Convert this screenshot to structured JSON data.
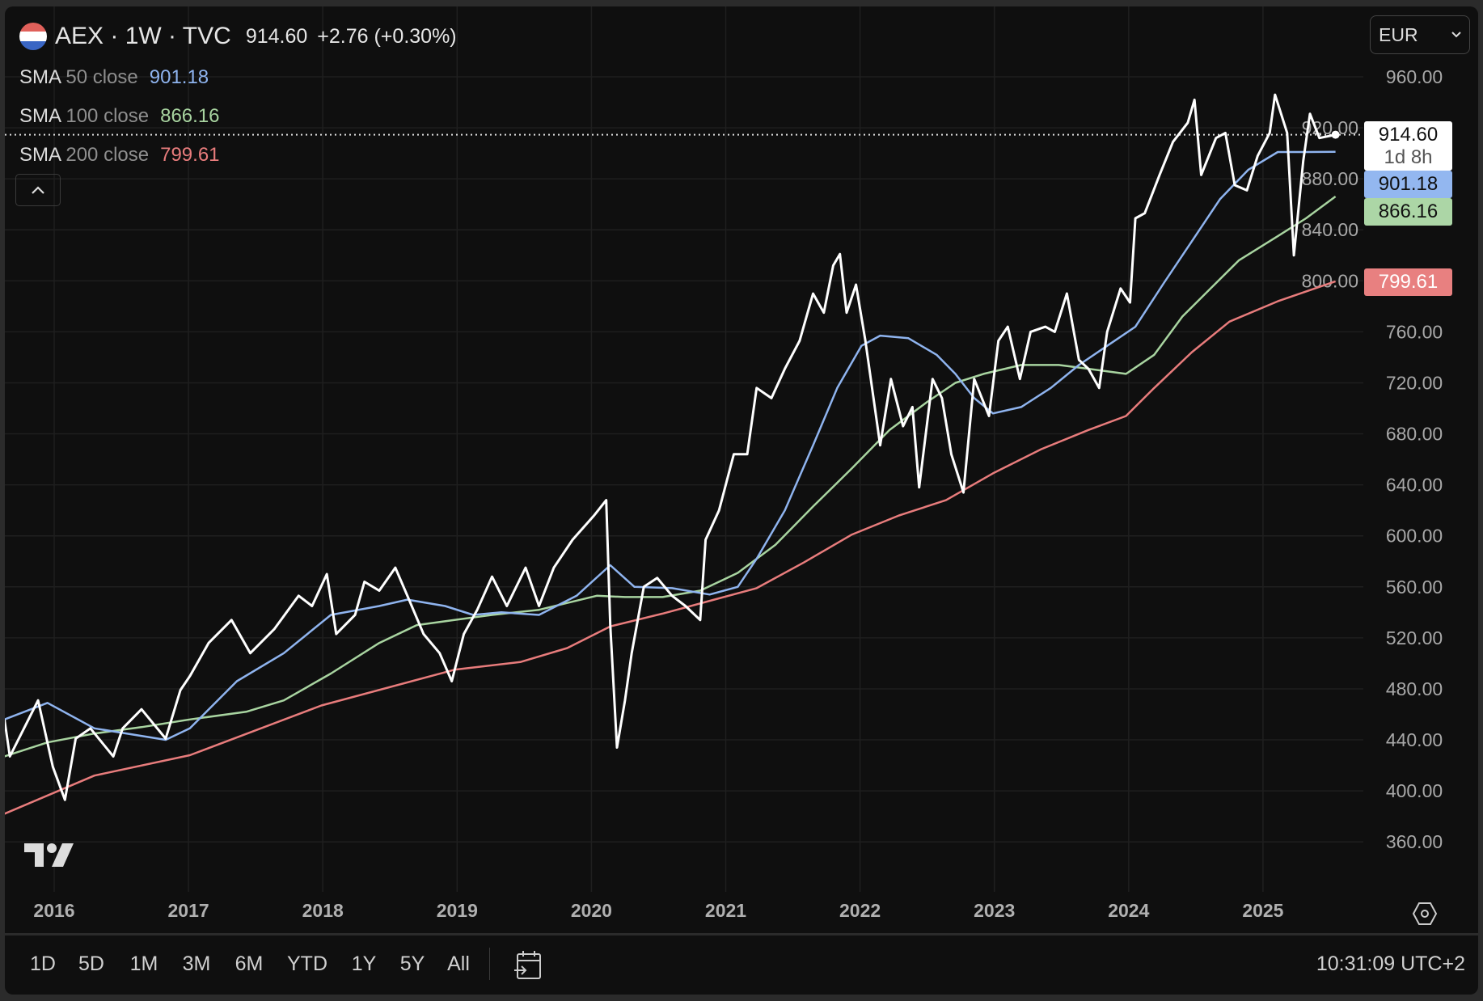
{
  "header": {
    "symbol": "AEX · 1W · TVC",
    "price": "914.60",
    "change": "+2.76 (+0.30%)",
    "flag_colors": [
      "#e0605a",
      "#ffffff",
      "#3a66c4"
    ]
  },
  "indicators": [
    {
      "name": "SMA",
      "params": "50 close",
      "value": "901.18",
      "color": "#8fb4ef"
    },
    {
      "name": "SMA",
      "params": "100 close",
      "value": "866.16",
      "color": "#a8d4a0"
    },
    {
      "name": "SMA",
      "params": "200 close",
      "value": "799.61",
      "color": "#e87c7c"
    }
  ],
  "currency": "EUR",
  "price_tags": {
    "last": "914.60",
    "countdown": "1d 8h",
    "sma50": "901.18",
    "sma100": "866.16",
    "sma200": "799.61"
  },
  "toolbar": {
    "ranges": [
      "1D",
      "5D",
      "1M",
      "3M",
      "6M",
      "YTD",
      "1Y",
      "5Y",
      "All"
    ],
    "clock": "10:31:09 UTC+2"
  },
  "chart_data": {
    "type": "line",
    "title": "AEX · 1W · TVC",
    "xlim": [
      2015.6,
      2025.9
    ],
    "ylim": [
      330,
      990
    ],
    "x_ticks": [
      "2016",
      "2017",
      "2018",
      "2019",
      "2020",
      "2021",
      "2022",
      "2023",
      "2024",
      "2025"
    ],
    "y_ticks": [
      "960.00",
      "920.00",
      "880.00",
      "840.00",
      "800.00",
      "760.00",
      "720.00",
      "680.00",
      "640.00",
      "600.00",
      "560.00",
      "520.00",
      "480.00",
      "440.00",
      "400.00",
      "360.00"
    ],
    "grid": true,
    "last_value": 914.6,
    "series": [
      {
        "name": "AEX close",
        "color": "#ffffff",
        "points": [
          [
            2015.63,
            456
          ],
          [
            2015.67,
            427
          ],
          [
            2015.88,
            471
          ],
          [
            2015.99,
            419
          ],
          [
            2016.08,
            393
          ],
          [
            2016.16,
            441
          ],
          [
            2016.27,
            449
          ],
          [
            2016.44,
            427
          ],
          [
            2016.51,
            449
          ],
          [
            2016.65,
            464
          ],
          [
            2016.83,
            441
          ],
          [
            2016.94,
            479
          ],
          [
            2017.01,
            490
          ],
          [
            2017.15,
            516
          ],
          [
            2017.32,
            534
          ],
          [
            2017.46,
            508
          ],
          [
            2017.64,
            527
          ],
          [
            2017.82,
            553
          ],
          [
            2017.92,
            545
          ],
          [
            2018.03,
            570
          ],
          [
            2018.1,
            523
          ],
          [
            2018.24,
            538
          ],
          [
            2018.31,
            564
          ],
          [
            2018.42,
            557
          ],
          [
            2018.54,
            575
          ],
          [
            2018.63,
            553
          ],
          [
            2018.75,
            523
          ],
          [
            2018.87,
            508
          ],
          [
            2018.96,
            486
          ],
          [
            2019.05,
            523
          ],
          [
            2019.15,
            542
          ],
          [
            2019.26,
            568
          ],
          [
            2019.37,
            545
          ],
          [
            2019.51,
            575
          ],
          [
            2019.61,
            545
          ],
          [
            2019.72,
            575
          ],
          [
            2019.86,
            597
          ],
          [
            2020.02,
            616
          ],
          [
            2020.11,
            628
          ],
          [
            2020.14,
            530
          ],
          [
            2020.19,
            434
          ],
          [
            2020.25,
            471
          ],
          [
            2020.3,
            508
          ],
          [
            2020.39,
            560
          ],
          [
            2020.49,
            567
          ],
          [
            2020.6,
            553
          ],
          [
            2020.7,
            545
          ],
          [
            2020.81,
            534
          ],
          [
            2020.85,
            597
          ],
          [
            2020.95,
            620
          ],
          [
            2021.06,
            664
          ],
          [
            2021.16,
            664
          ],
          [
            2021.23,
            716
          ],
          [
            2021.34,
            708
          ],
          [
            2021.44,
            731
          ],
          [
            2021.55,
            753
          ],
          [
            2021.65,
            790
          ],
          [
            2021.73,
            775
          ],
          [
            2021.8,
            812
          ],
          [
            2021.85,
            821
          ],
          [
            2021.9,
            775
          ],
          [
            2021.97,
            797
          ],
          [
            2022.04,
            753
          ],
          [
            2022.15,
            671
          ],
          [
            2022.23,
            723
          ],
          [
            2022.32,
            686
          ],
          [
            2022.39,
            701
          ],
          [
            2022.44,
            638
          ],
          [
            2022.54,
            723
          ],
          [
            2022.61,
            708
          ],
          [
            2022.68,
            664
          ],
          [
            2022.77,
            634
          ],
          [
            2022.85,
            723
          ],
          [
            2022.96,
            694
          ],
          [
            2023.03,
            753
          ],
          [
            2023.1,
            764
          ],
          [
            2023.19,
            723
          ],
          [
            2023.27,
            760
          ],
          [
            2023.38,
            764
          ],
          [
            2023.45,
            760
          ],
          [
            2023.54,
            790
          ],
          [
            2023.63,
            738
          ],
          [
            2023.7,
            731
          ],
          [
            2023.78,
            716
          ],
          [
            2023.84,
            760
          ],
          [
            2023.94,
            794
          ],
          [
            2024.01,
            783
          ],
          [
            2024.05,
            849
          ],
          [
            2024.12,
            853
          ],
          [
            2024.23,
            883
          ],
          [
            2024.33,
            909
          ],
          [
            2024.44,
            924
          ],
          [
            2024.49,
            942
          ],
          [
            2024.54,
            883
          ],
          [
            2024.65,
            912
          ],
          [
            2024.72,
            916
          ],
          [
            2024.79,
            875
          ],
          [
            2024.88,
            871
          ],
          [
            2024.96,
            898
          ],
          [
            2025.05,
            916
          ],
          [
            2025.09,
            946
          ],
          [
            2025.18,
            916
          ],
          [
            2025.23,
            820
          ],
          [
            2025.3,
            894
          ],
          [
            2025.35,
            931
          ],
          [
            2025.42,
            912
          ],
          [
            2025.54,
            914.6
          ]
        ]
      },
      {
        "name": "SMA 50",
        "color": "#8fb4ef",
        "points": [
          [
            2015.63,
            456
          ],
          [
            2015.95,
            469
          ],
          [
            2016.3,
            449
          ],
          [
            2016.83,
            440
          ],
          [
            2017.01,
            449
          ],
          [
            2017.36,
            486
          ],
          [
            2017.71,
            508
          ],
          [
            2018.06,
            538
          ],
          [
            2018.42,
            545
          ],
          [
            2018.63,
            550
          ],
          [
            2018.91,
            545
          ],
          [
            2019.12,
            538
          ],
          [
            2019.33,
            540
          ],
          [
            2019.61,
            538
          ],
          [
            2019.89,
            553
          ],
          [
            2020.14,
            577
          ],
          [
            2020.32,
            560
          ],
          [
            2020.6,
            559
          ],
          [
            2020.88,
            554
          ],
          [
            2021.09,
            560
          ],
          [
            2021.23,
            582
          ],
          [
            2021.44,
            620
          ],
          [
            2021.65,
            671
          ],
          [
            2021.83,
            716
          ],
          [
            2022.01,
            749
          ],
          [
            2022.15,
            757
          ],
          [
            2022.36,
            755
          ],
          [
            2022.57,
            742
          ],
          [
            2022.71,
            727
          ],
          [
            2022.85,
            708
          ],
          [
            2022.99,
            696
          ],
          [
            2023.2,
            701
          ],
          [
            2023.42,
            716
          ],
          [
            2023.63,
            734
          ],
          [
            2023.84,
            749
          ],
          [
            2024.05,
            764
          ],
          [
            2024.26,
            798
          ],
          [
            2024.47,
            831
          ],
          [
            2024.68,
            864
          ],
          [
            2024.89,
            887
          ],
          [
            2025.11,
            901
          ],
          [
            2025.32,
            901
          ],
          [
            2025.54,
            901.18
          ]
        ]
      },
      {
        "name": "SMA 100",
        "color": "#a8d4a0",
        "points": [
          [
            2015.63,
            427
          ],
          [
            2015.95,
            438
          ],
          [
            2016.3,
            445
          ],
          [
            2016.65,
            450
          ],
          [
            2017.01,
            456
          ],
          [
            2017.43,
            462
          ],
          [
            2017.71,
            471
          ],
          [
            2018.06,
            492
          ],
          [
            2018.42,
            516
          ],
          [
            2018.7,
            530
          ],
          [
            2018.98,
            534
          ],
          [
            2019.26,
            538
          ],
          [
            2019.61,
            542
          ],
          [
            2020.04,
            553
          ],
          [
            2020.25,
            552
          ],
          [
            2020.53,
            552
          ],
          [
            2020.81,
            557
          ],
          [
            2021.09,
            571
          ],
          [
            2021.37,
            593
          ],
          [
            2021.65,
            623
          ],
          [
            2021.94,
            653
          ],
          [
            2022.22,
            683
          ],
          [
            2022.5,
            705
          ],
          [
            2022.71,
            720
          ],
          [
            2022.92,
            727
          ],
          [
            2023.2,
            734
          ],
          [
            2023.48,
            734
          ],
          [
            2023.7,
            731
          ],
          [
            2023.98,
            727
          ],
          [
            2024.19,
            742
          ],
          [
            2024.4,
            772
          ],
          [
            2024.61,
            794
          ],
          [
            2024.82,
            816
          ],
          [
            2025.11,
            835
          ],
          [
            2025.32,
            849
          ],
          [
            2025.54,
            866.16
          ]
        ]
      },
      {
        "name": "SMA 200",
        "color": "#e87c7c",
        "points": [
          [
            2015.63,
            382
          ],
          [
            2016.3,
            412
          ],
          [
            2017.01,
            428
          ],
          [
            2017.99,
            467
          ],
          [
            2018.98,
            495
          ],
          [
            2019.47,
            501
          ],
          [
            2019.82,
            512
          ],
          [
            2020.14,
            529
          ],
          [
            2020.53,
            539
          ],
          [
            2020.95,
            551
          ],
          [
            2021.23,
            559
          ],
          [
            2021.58,
            579
          ],
          [
            2021.94,
            601
          ],
          [
            2022.29,
            616
          ],
          [
            2022.64,
            628
          ],
          [
            2022.99,
            649
          ],
          [
            2023.35,
            668
          ],
          [
            2023.7,
            683
          ],
          [
            2023.98,
            694
          ],
          [
            2024.19,
            716
          ],
          [
            2024.47,
            744
          ],
          [
            2024.75,
            768
          ],
          [
            2025.11,
            784
          ],
          [
            2025.54,
            799.61
          ]
        ]
      }
    ]
  }
}
